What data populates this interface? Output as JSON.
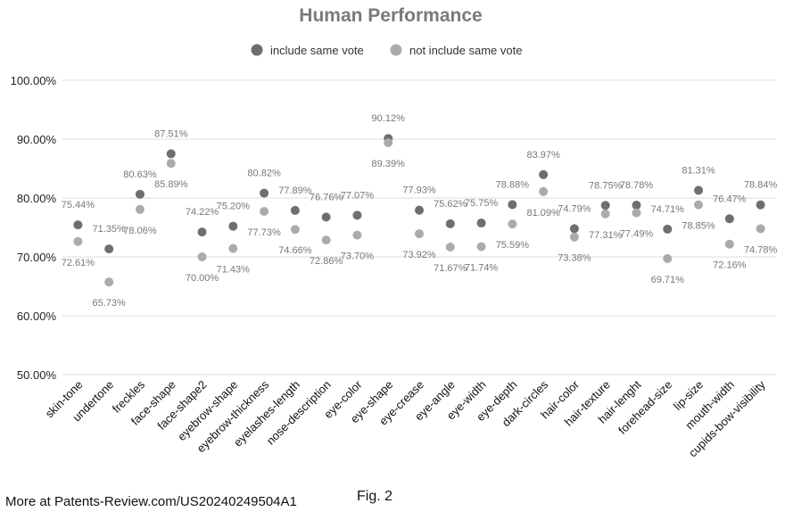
{
  "chart_data": {
    "type": "scatter",
    "title": "Human Performance",
    "categories": [
      "skin-tone",
      "undertone",
      "freckles",
      "face-shape",
      "face-shape2",
      "eyebrow-shape",
      "eyebrow-thickness",
      "eyelashes-length",
      "nose-description",
      "eye-color",
      "eye-shape",
      "eye-crease",
      "eye-angle",
      "eye-width",
      "eye-depth",
      "dark-circles",
      "hair-color",
      "hair-texture",
      "hair-lenght",
      "forehead-size",
      "lip-size",
      "mouth-width",
      "cupids-bow-visibility"
    ],
    "series": [
      {
        "name": "include same vote",
        "color": "#6e6e6e",
        "values": [
          75.44,
          71.35,
          80.63,
          87.51,
          74.22,
          75.2,
          80.82,
          77.89,
          76.76,
          77.07,
          90.12,
          77.93,
          75.62,
          75.75,
          78.88,
          83.97,
          74.79,
          78.75,
          78.78,
          74.71,
          81.31,
          76.47,
          78.84
        ],
        "labels": [
          "75.44%",
          "71.35%",
          "80.63%",
          "87.51%",
          "74.22%",
          "75.20%",
          "80.82%",
          "77.89%",
          "76.76%",
          "77.07%",
          "90.12%",
          "77.93%",
          "75.62%",
          "75.75%",
          "78.88%",
          "83.97%",
          "74.79%",
          "78.75%",
          "78.78%",
          "74.71%",
          "81.31%",
          "76.47%",
          "78.84%"
        ]
      },
      {
        "name": "not include same vote",
        "color": "#ababab",
        "values": [
          72.61,
          65.73,
          78.06,
          85.89,
          70.0,
          71.43,
          77.73,
          74.66,
          72.86,
          73.7,
          89.39,
          73.92,
          71.67,
          71.74,
          75.59,
          81.09,
          73.38,
          77.31,
          77.49,
          69.71,
          78.85,
          72.16,
          74.78
        ],
        "labels": [
          "72.61%",
          "65.73%",
          "78.06%",
          "85.89%",
          "70.00%",
          "71.43%",
          "77.73%",
          "74.66%",
          "72.86%",
          "73.70%",
          "89.39%",
          "73.92%",
          "71.67%",
          "71.74%",
          "75.59%",
          "81.09%",
          "73.38%",
          "77.31%",
          "77.49%",
          "69.71%",
          "78.85%",
          "72.16%",
          "74.78%"
        ]
      }
    ],
    "yticks": [
      "50.00%",
      "60.00%",
      "70.00%",
      "80.00%",
      "90.00%",
      "100.00%"
    ],
    "ylim": [
      50,
      100
    ],
    "grid": true,
    "legend": "top-center"
  },
  "footer": {
    "source": "More at Patents-Review.com/US20240249504A1",
    "figure": "Fig. 2"
  }
}
